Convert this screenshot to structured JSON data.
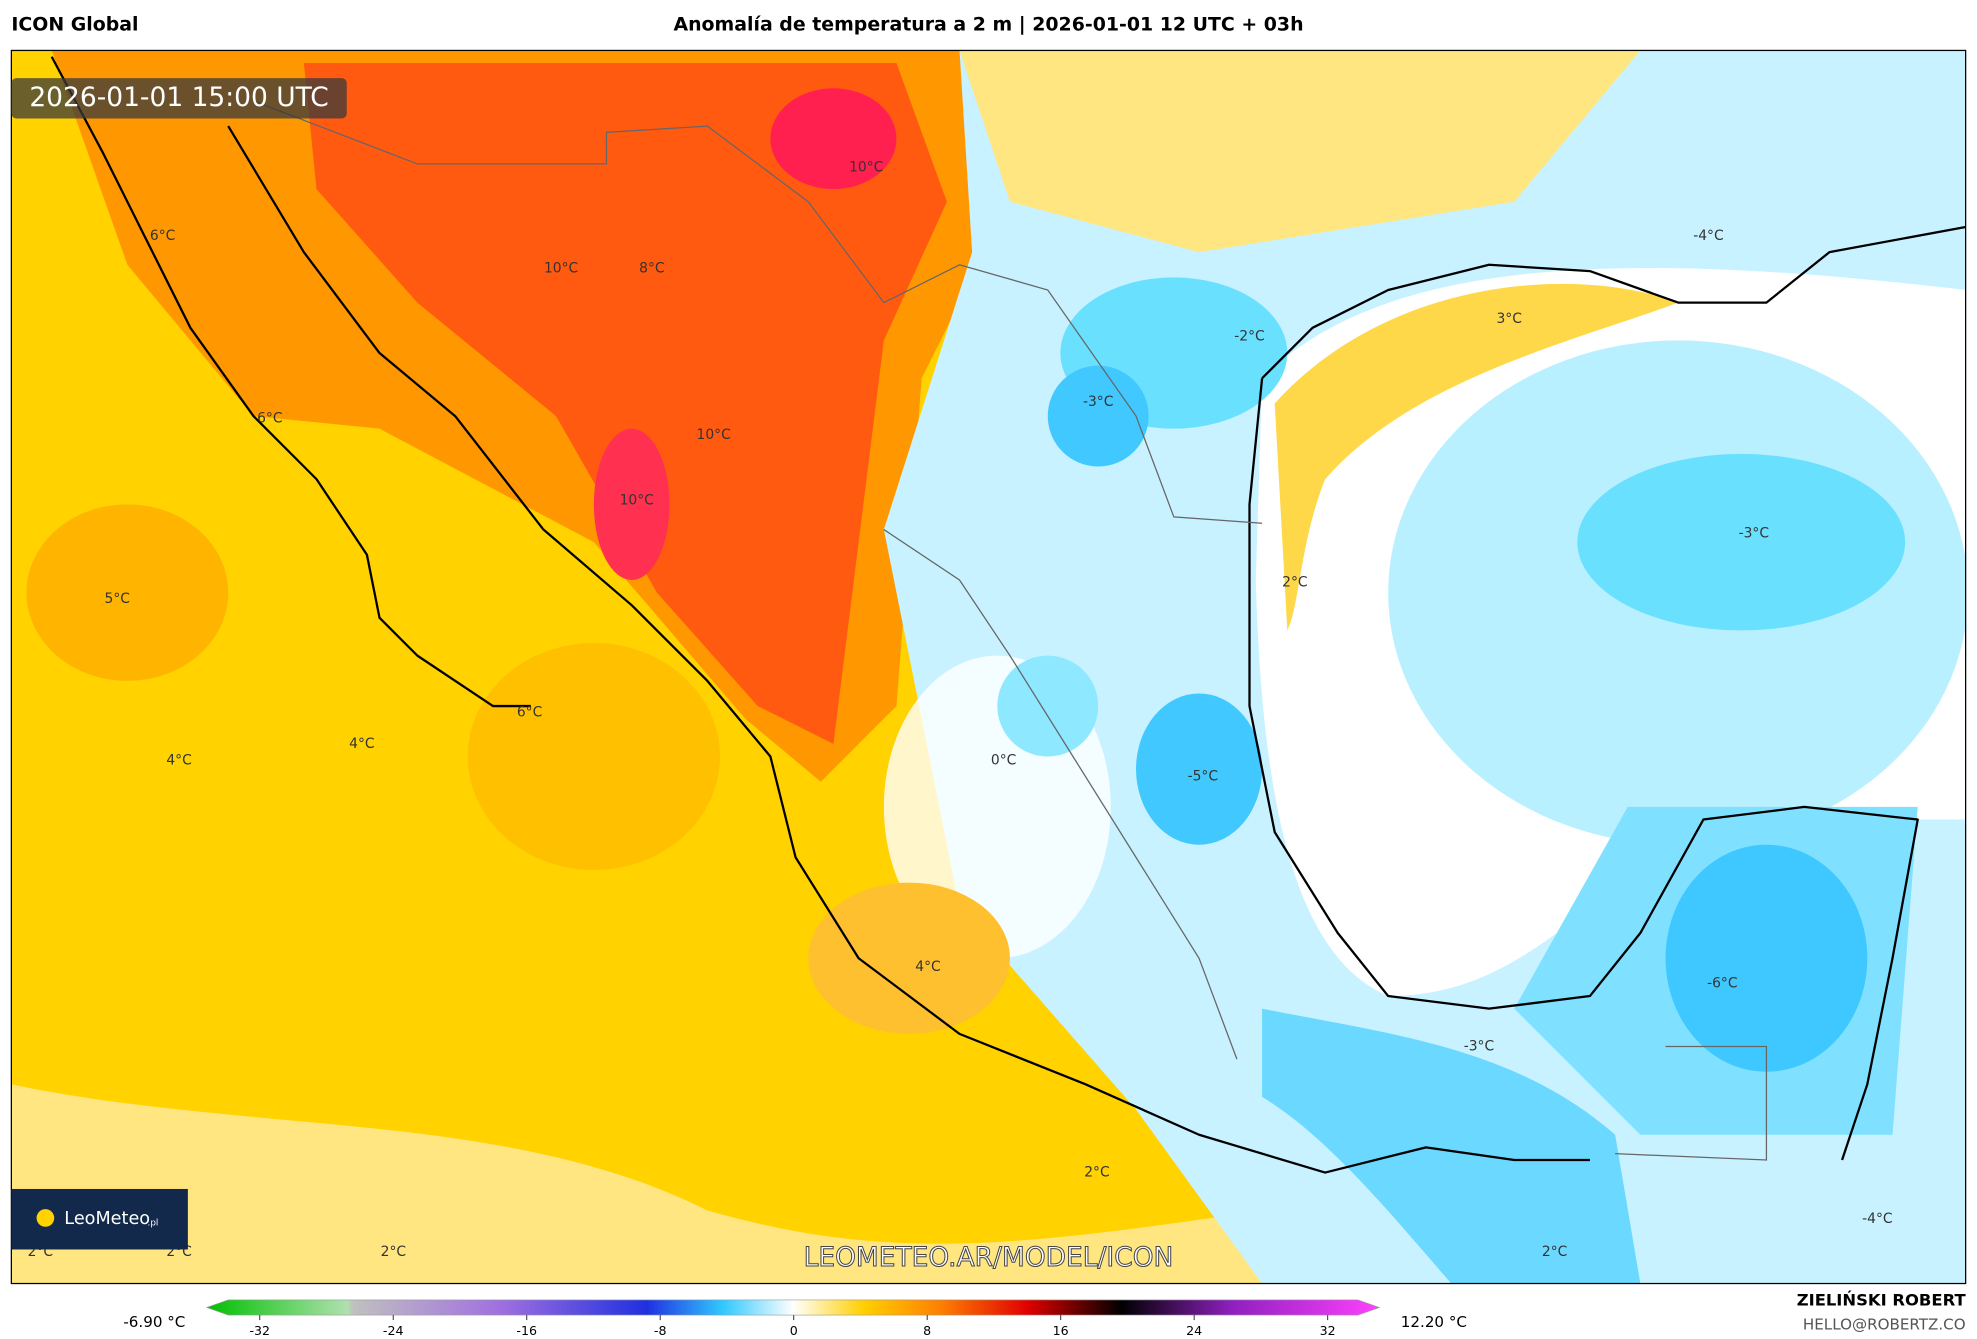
{
  "header": {
    "model": "ICON Global",
    "title": "Anomalía de temperatura a 2 m | 2026-01-01 12 UTC + 03h"
  },
  "timestamp": "2026-01-01 15:00 UTC",
  "map_labels": [
    "6°C",
    "6°C",
    "10°C",
    "8°C",
    "10°C",
    "10°C",
    "10°C",
    "5°C",
    "6°C",
    "4°C",
    "4°C",
    "-2°C",
    "-3°C",
    "3°C",
    "2°C",
    "-3°C",
    "0°C",
    "-5°C",
    "-4°C",
    "4°C",
    "-6°C",
    "-3°C",
    "2°C",
    "2°C",
    "2°C",
    "2°C",
    "2°C",
    "-4°C"
  ],
  "watermark": "LEOMETEO.AR/MODEL/ICON",
  "logo": {
    "name": "LeoMeteo",
    "suffix": ".pl"
  },
  "colorbar": {
    "min_label": "-6.90 °C",
    "max_label": "12.20 °C",
    "range": [
      -32,
      32
    ],
    "ticks": [
      -32,
      -24,
      -16,
      -8,
      0,
      8,
      16,
      24,
      32
    ]
  },
  "credit": {
    "author": "ZIELIŃSKI ROBERT",
    "email": "HELLO@ROBERTZ.CO"
  }
}
